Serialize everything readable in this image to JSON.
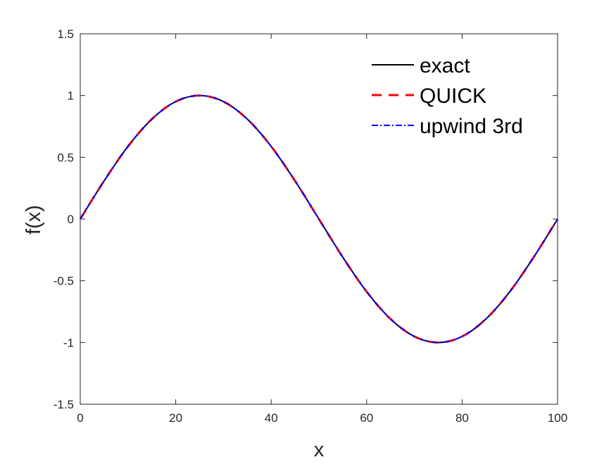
{
  "chart_data": {
    "type": "line",
    "title": "",
    "xlabel": "x",
    "ylabel": "f(x)",
    "xlim": [
      0,
      100
    ],
    "ylim": [
      -1.5,
      1.5
    ],
    "xticks": [
      0,
      20,
      40,
      60,
      80,
      100
    ],
    "yticks": [
      -1.5,
      -1,
      -0.5,
      0,
      0.5,
      1,
      1.5
    ],
    "xtick_labels": [
      "0",
      "20",
      "40",
      "60",
      "80",
      "100"
    ],
    "ytick_labels": [
      "-1.5",
      "-1",
      "-0.5",
      "0",
      "0.5",
      "1",
      "1.5"
    ],
    "grid": false,
    "legend_position": "top-right",
    "x": [
      0,
      5,
      10,
      15,
      20,
      25,
      30,
      35,
      40,
      45,
      50,
      55,
      60,
      65,
      70,
      75,
      80,
      85,
      90,
      95,
      100
    ],
    "series": [
      {
        "name": "exact",
        "color": "#000000",
        "style": "solid",
        "values": [
          0,
          0.309,
          0.588,
          0.809,
          0.951,
          1.0,
          0.951,
          0.809,
          0.588,
          0.309,
          0,
          -0.309,
          -0.588,
          -0.809,
          -0.951,
          -1.0,
          -0.951,
          -0.809,
          -0.588,
          -0.309,
          0
        ]
      },
      {
        "name": "QUICK",
        "color": "#ff0000",
        "style": "dashed",
        "values": [
          0,
          0.309,
          0.588,
          0.809,
          0.951,
          1.0,
          0.951,
          0.809,
          0.588,
          0.309,
          0,
          -0.309,
          -0.588,
          -0.809,
          -0.951,
          -1.0,
          -0.951,
          -0.809,
          -0.588,
          -0.309,
          0
        ]
      },
      {
        "name": "upwind 3rd",
        "color": "#0000ff",
        "style": "dashdot",
        "values": [
          0,
          0.309,
          0.588,
          0.809,
          0.951,
          1.0,
          0.951,
          0.809,
          0.588,
          0.309,
          0,
          -0.309,
          -0.588,
          -0.809,
          -0.951,
          -1.0,
          -0.951,
          -0.809,
          -0.588,
          -0.309,
          0
        ]
      }
    ]
  }
}
